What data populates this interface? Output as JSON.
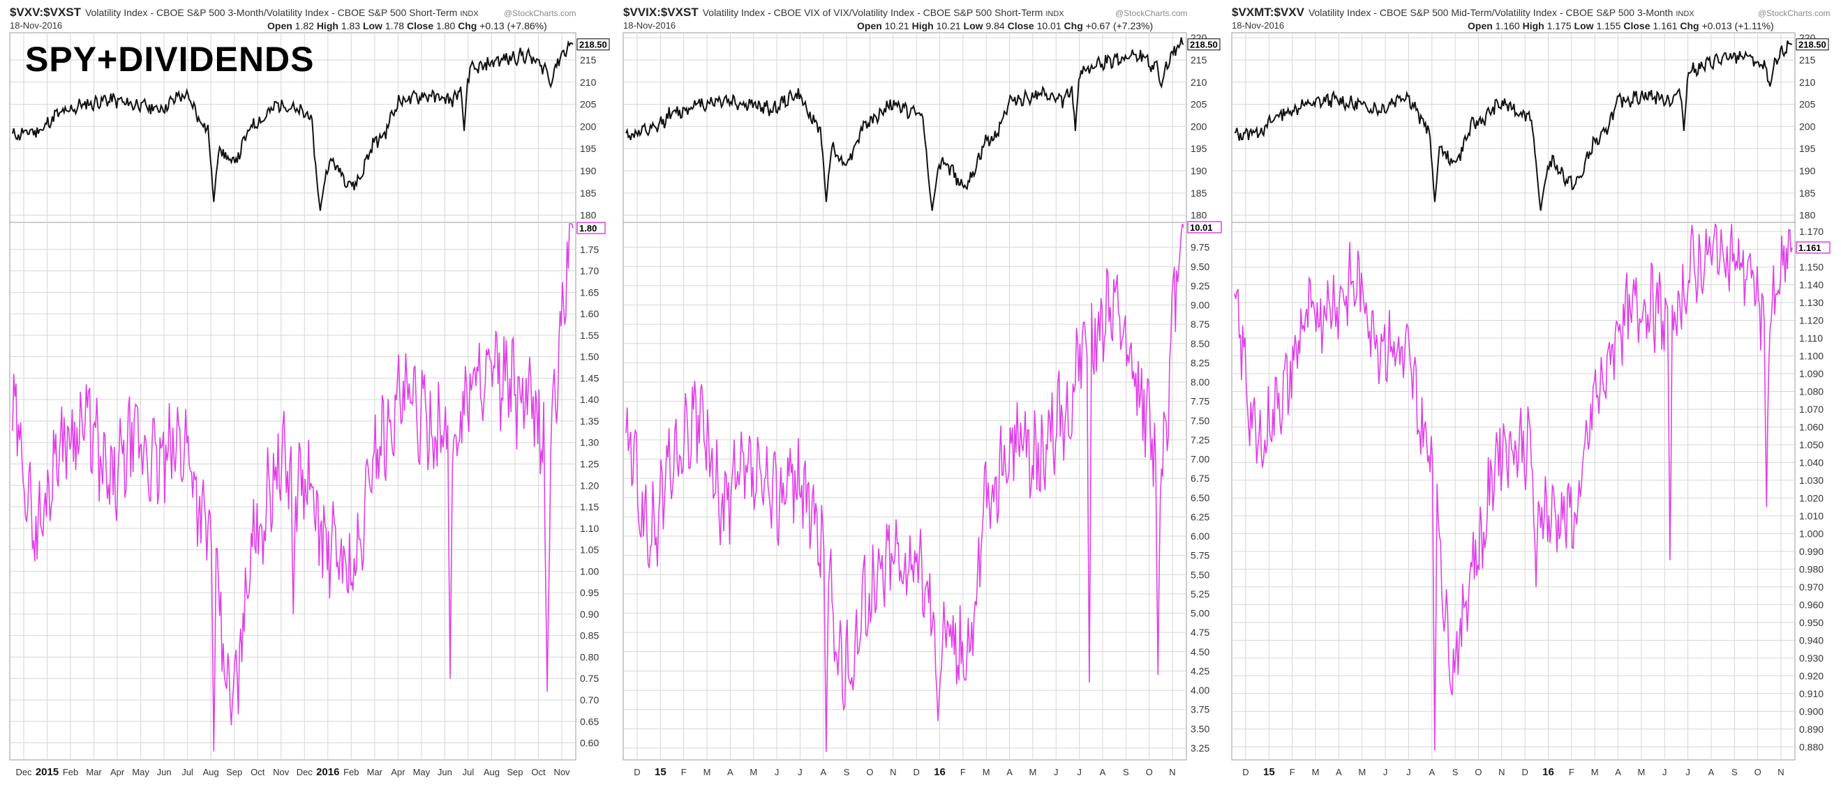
{
  "overlay_text": "SPY+DIVIDENDS",
  "watermark": "@StockCharts.com",
  "panels": [
    {
      "symbol": "$VXV:$VXST",
      "description": "Volatility Index - CBOE S&P 500 3-Month/Volatility Index - CBOE S&P 500 Short-Term",
      "exchange": "INDX",
      "date": "18-Nov-2016",
      "ohlc": {
        "open_label": "Open",
        "open": "1.82",
        "high_label": "High",
        "high": "1.83",
        "low_label": "Low",
        "low": "1.78",
        "close_label": "Close",
        "close": "1.80",
        "chg_label": "Chg",
        "chg": "+0.13 (+7.86%)"
      },
      "spy_last_label": "218.50",
      "ratio_last_label": "1.80",
      "spy_ticks": [
        "180",
        "185",
        "190",
        "195",
        "200",
        "205",
        "210",
        "215"
      ],
      "ratio_ticks": [
        "0.60",
        "0.65",
        "0.70",
        "0.75",
        "0.80",
        "0.85",
        "0.90",
        "0.95",
        "1.00",
        "1.05",
        "1.10",
        "1.15",
        "1.20",
        "1.25",
        "1.30",
        "1.35",
        "1.40",
        "1.45",
        "1.50",
        "1.55",
        "1.60",
        "1.65",
        "1.70",
        "1.75"
      ],
      "x_ticks": [
        {
          "label": "Dec",
          "bold": false
        },
        {
          "label": "2015",
          "bold": true
        },
        {
          "label": "Feb",
          "bold": false
        },
        {
          "label": "Mar",
          "bold": false
        },
        {
          "label": "Apr",
          "bold": false
        },
        {
          "label": "May",
          "bold": false
        },
        {
          "label": "Jun",
          "bold": false
        },
        {
          "label": "Jul",
          "bold": false
        },
        {
          "label": "Aug",
          "bold": false
        },
        {
          "label": "Sep",
          "bold": false
        },
        {
          "label": "Oct",
          "bold": false
        },
        {
          "label": "Nov",
          "bold": false
        },
        {
          "label": "Dec",
          "bold": false
        },
        {
          "label": "2016",
          "bold": true
        },
        {
          "label": "Feb",
          "bold": false
        },
        {
          "label": "Mar",
          "bold": false
        },
        {
          "label": "Apr",
          "bold": false
        },
        {
          "label": "May",
          "bold": false
        },
        {
          "label": "Jun",
          "bold": false
        },
        {
          "label": "Jul",
          "bold": false
        },
        {
          "label": "Aug",
          "bold": false
        },
        {
          "label": "Sep",
          "bold": false
        },
        {
          "label": "Oct",
          "bold": false
        },
        {
          "label": "Nov",
          "bold": false
        }
      ]
    },
    {
      "symbol": "$VVIX:$VXST",
      "description": "Volatility Index - CBOE VIX of VIX/Volatility Index - CBOE S&P 500 Short-Term",
      "exchange": "INDX",
      "date": "18-Nov-2016",
      "ohlc": {
        "open_label": "Open",
        "open": "10.21",
        "high_label": "High",
        "high": "10.21",
        "low_label": "Low",
        "low": "9.84",
        "close_label": "Close",
        "close": "10.01",
        "chg_label": "Chg",
        "chg": "+0.67 (+7.23%)"
      },
      "spy_last_label": "218.50",
      "ratio_last_label": "10.01",
      "spy_ticks": [
        "180",
        "185",
        "190",
        "195",
        "200",
        "205",
        "210",
        "215",
        "220"
      ],
      "ratio_ticks": [
        "3.25",
        "3.50",
        "3.75",
        "4.00",
        "4.25",
        "4.50",
        "4.75",
        "5.00",
        "5.25",
        "5.50",
        "5.75",
        "6.00",
        "6.25",
        "6.50",
        "6.75",
        "7.00",
        "7.25",
        "7.50",
        "7.75",
        "8.00",
        "8.25",
        "8.50",
        "8.75",
        "9.00",
        "9.25",
        "9.50",
        "9.75"
      ],
      "x_ticks": [
        {
          "label": "D",
          "bold": false
        },
        {
          "label": "15",
          "bold": true
        },
        {
          "label": "F",
          "bold": false
        },
        {
          "label": "M",
          "bold": false
        },
        {
          "label": "A",
          "bold": false
        },
        {
          "label": "M",
          "bold": false
        },
        {
          "label": "J",
          "bold": false
        },
        {
          "label": "J",
          "bold": false
        },
        {
          "label": "A",
          "bold": false
        },
        {
          "label": "S",
          "bold": false
        },
        {
          "label": "O",
          "bold": false
        },
        {
          "label": "N",
          "bold": false
        },
        {
          "label": "D",
          "bold": false
        },
        {
          "label": "16",
          "bold": true
        },
        {
          "label": "F",
          "bold": false
        },
        {
          "label": "M",
          "bold": false
        },
        {
          "label": "A",
          "bold": false
        },
        {
          "label": "M",
          "bold": false
        },
        {
          "label": "J",
          "bold": false
        },
        {
          "label": "J",
          "bold": false
        },
        {
          "label": "A",
          "bold": false
        },
        {
          "label": "S",
          "bold": false
        },
        {
          "label": "O",
          "bold": false
        },
        {
          "label": "N",
          "bold": false
        }
      ]
    },
    {
      "symbol": "$VXMT:$VXV",
      "description": "Volatility Index - CBOE S&P 500 Mid-Term/Volatility Index - CBOE S&P 500 3-Month",
      "exchange": "INDX",
      "date": "18-Nov-2016",
      "ohlc": {
        "open_label": "Open",
        "open": "1.160",
        "high_label": "High",
        "high": "1.175",
        "low_label": "Low",
        "low": "1.155",
        "close_label": "Close",
        "close": "1.161",
        "chg_label": "Chg",
        "chg": "+0.013 (+1.11%)"
      },
      "spy_last_label": "218.50",
      "ratio_last_label": "1.161",
      "spy_ticks": [
        "180",
        "185",
        "190",
        "195",
        "200",
        "205",
        "210",
        "215",
        "220"
      ],
      "ratio_ticks": [
        "0.880",
        "0.890",
        "0.900",
        "0.910",
        "0.920",
        "0.930",
        "0.940",
        "0.950",
        "0.960",
        "0.970",
        "0.980",
        "0.990",
        "1.000",
        "1.010",
        "1.020",
        "1.030",
        "1.040",
        "1.050",
        "1.060",
        "1.070",
        "1.080",
        "1.090",
        "1.100",
        "1.110",
        "1.120",
        "1.130",
        "1.140",
        "1.150",
        "1.160",
        "1.170"
      ],
      "x_ticks": [
        {
          "label": "D",
          "bold": false
        },
        {
          "label": "15",
          "bold": true
        },
        {
          "label": "F",
          "bold": false
        },
        {
          "label": "M",
          "bold": false
        },
        {
          "label": "A",
          "bold": false
        },
        {
          "label": "M",
          "bold": false
        },
        {
          "label": "J",
          "bold": false
        },
        {
          "label": "J",
          "bold": false
        },
        {
          "label": "A",
          "bold": false
        },
        {
          "label": "S",
          "bold": false
        },
        {
          "label": "O",
          "bold": false
        },
        {
          "label": "N",
          "bold": false
        },
        {
          "label": "D",
          "bold": false
        },
        {
          "label": "16",
          "bold": true
        },
        {
          "label": "F",
          "bold": false
        },
        {
          "label": "M",
          "bold": false
        },
        {
          "label": "A",
          "bold": false
        },
        {
          "label": "M",
          "bold": false
        },
        {
          "label": "J",
          "bold": false
        },
        {
          "label": "J",
          "bold": false
        },
        {
          "label": "A",
          "bold": false
        },
        {
          "label": "S",
          "bold": false
        },
        {
          "label": "O",
          "bold": false
        },
        {
          "label": "N",
          "bold": false
        }
      ]
    }
  ],
  "colors": {
    "price_line": "#111111",
    "ratio_line": "#e040e8",
    "grid": "#d6d6d6",
    "frame": "#9a9a9a"
  },
  "chart_data": [
    {
      "type": "line",
      "title": "$VXV:$VXST",
      "x": [
        "Dec-2014",
        "Jan-2015",
        "Feb-2015",
        "Mar-2015",
        "Apr-2015",
        "May-2015",
        "Jun-2015",
        "Jul-2015",
        "Aug-2015",
        "Sep-2015",
        "Oct-2015",
        "Nov-2015",
        "Dec-2015",
        "Jan-2016",
        "Feb-2016",
        "Mar-2016",
        "Apr-2016",
        "May-2016",
        "Jun-2016",
        "Jul-2016",
        "Aug-2016",
        "Sep-2016",
        "Oct-2016",
        "Nov-2016"
      ],
      "series": [
        {
          "values": [
            198,
            199,
            203,
            205,
            206,
            205,
            204,
            207,
            200,
            192,
            201,
            205,
            203,
            192,
            187,
            197,
            206,
            207,
            206,
            213,
            215,
            216,
            213,
            218.5
          ]
        },
        {
          "values": [
            1.35,
            1.1,
            1.3,
            1.35,
            1.2,
            1.3,
            1.25,
            1.3,
            1.1,
            0.7,
            1.1,
            1.25,
            1.2,
            1.05,
            1.0,
            1.3,
            1.4,
            1.35,
            1.3,
            1.45,
            1.45,
            1.4,
            1.3,
            1.8
          ]
        }
      ],
      "ylim": [
        0.57,
        1.8
      ]
    },
    {
      "type": "line",
      "title": "$VVIX:$VXST",
      "x": [
        "Dec-2014",
        "Jan-2015",
        "Feb-2015",
        "Mar-2015",
        "Apr-2015",
        "May-2015",
        "Jun-2015",
        "Jul-2015",
        "Aug-2015",
        "Sep-2015",
        "Oct-2015",
        "Nov-2015",
        "Dec-2015",
        "Jan-2016",
        "Feb-2016",
        "Mar-2016",
        "Apr-2016",
        "May-2016",
        "Jun-2016",
        "Jul-2016",
        "Aug-2016",
        "Sep-2016",
        "Oct-2016",
        "Nov-2016"
      ],
      "series": [
        {
          "values": [
            198,
            199,
            203,
            205,
            206,
            205,
            204,
            207,
            200,
            192,
            201,
            205,
            203,
            192,
            187,
            197,
            206,
            207,
            206,
            213,
            215,
            216,
            213,
            218.5
          ]
        },
        {
          "values": [
            7.2,
            6.0,
            7.0,
            7.5,
            6.4,
            6.8,
            6.5,
            6.8,
            6.0,
            4.2,
            5.2,
            5.8,
            5.6,
            4.8,
            4.5,
            6.5,
            7.2,
            7.0,
            7.5,
            8.5,
            9.0,
            8.0,
            7.0,
            10.01
          ]
        }
      ],
      "ylim": [
        3.15,
        10.0
      ]
    },
    {
      "type": "line",
      "title": "$VXMT:$VXV",
      "x": [
        "Dec-2014",
        "Jan-2015",
        "Feb-2015",
        "Mar-2015",
        "Apr-2015",
        "May-2015",
        "Jun-2015",
        "Jul-2015",
        "Aug-2015",
        "Sep-2015",
        "Oct-2015",
        "Nov-2015",
        "Dec-2015",
        "Jan-2016",
        "Feb-2016",
        "Mar-2016",
        "Apr-2016",
        "May-2016",
        "Jun-2016",
        "Jul-2016",
        "Aug-2016",
        "Sep-2016",
        "Oct-2016",
        "Nov-2016"
      ],
      "series": [
        {
          "values": [
            198,
            199,
            203,
            205,
            206,
            205,
            204,
            207,
            200,
            192,
            201,
            205,
            203,
            192,
            187,
            197,
            206,
            207,
            206,
            213,
            215,
            216,
            213,
            218.5
          ]
        },
        {
          "values": [
            1.12,
            1.05,
            1.08,
            1.12,
            1.13,
            1.14,
            1.11,
            1.1,
            1.05,
            0.93,
            0.99,
            1.05,
            1.05,
            1.01,
            1.01,
            1.08,
            1.12,
            1.13,
            1.12,
            1.15,
            1.16,
            1.15,
            1.12,
            1.161
          ]
        }
      ],
      "ylim": [
        0.875,
        1.172
      ]
    }
  ]
}
